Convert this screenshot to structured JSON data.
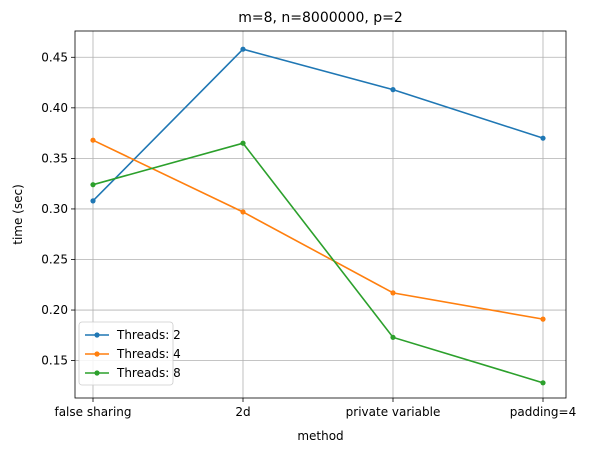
{
  "chart_data": {
    "type": "line",
    "title": "m=8, n=8000000, p=2",
    "xlabel": "method",
    "ylabel": "time (sec)",
    "categories": [
      "false sharing",
      "2d",
      "private variable",
      "padding=4"
    ],
    "ylim": [
      0.113,
      0.476
    ],
    "yticks": [
      0.15,
      0.2,
      0.25,
      0.3,
      0.35,
      0.4,
      0.45
    ],
    "ytick_labels": [
      "0.15",
      "0.20",
      "0.25",
      "0.30",
      "0.35",
      "0.40",
      "0.45"
    ],
    "grid": true,
    "legend_position": "lower-left",
    "series": [
      {
        "name": "Threads: 2",
        "color": "#1f77b4",
        "values": [
          0.308,
          0.458,
          0.418,
          0.37
        ]
      },
      {
        "name": "Threads: 4",
        "color": "#ff7f0e",
        "values": [
          0.368,
          0.297,
          0.217,
          0.191
        ]
      },
      {
        "name": "Threads: 8",
        "color": "#2ca02c",
        "values": [
          0.324,
          0.365,
          0.173,
          0.128
        ]
      }
    ]
  }
}
